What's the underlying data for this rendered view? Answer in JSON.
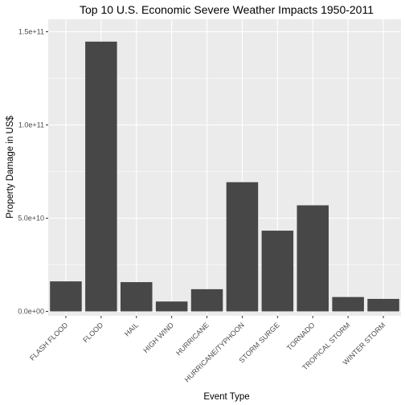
{
  "chart_data": {
    "type": "bar",
    "title": "Top 10 U.S. Economic Severe Weather Impacts 1950-2011",
    "xlabel": "Event Type",
    "ylabel": "Property Damage in US$",
    "categories": [
      "FLASH FLOOD",
      "FLOOD",
      "HAIL",
      "HIGH WIND",
      "HURRICANE",
      "HURRICANE/TYPHOON",
      "STORM SURGE",
      "TORNADO",
      "TROPICAL STORM",
      "WINTER STORM"
    ],
    "values": [
      16100000000,
      144700000000,
      15700000000,
      5300000000,
      11900000000,
      69300000000,
      43300000000,
      56900000000,
      7700000000,
      6700000000
    ],
    "ylim": [
      0,
      150000000000
    ],
    "yticks": [
      0,
      50000000000,
      100000000000,
      150000000000
    ],
    "ytick_labels": [
      "0.0e+00",
      "5.0e+10",
      "1.0e+11",
      "1.5e+11"
    ],
    "grid": true,
    "legend": "none",
    "bar_color": "#474747",
    "panel_color": "#ebebeb"
  }
}
